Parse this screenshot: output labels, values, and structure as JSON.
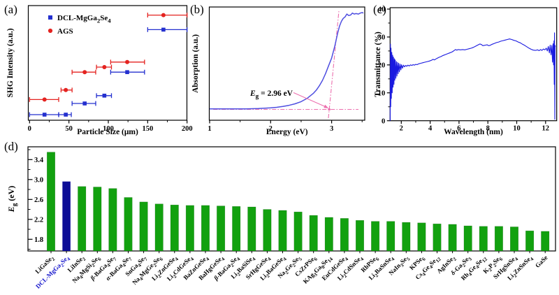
{
  "chart_data": [
    {
      "id": "a",
      "type": "scatter",
      "tag": "(a)",
      "xlabel": "Particle Size (μm)",
      "ylabel": "SHG Intensity (a.u.)",
      "xlim": [
        0,
        200
      ],
      "xticks": [
        0,
        50,
        100,
        150,
        200
      ],
      "xticks_minor": [
        25,
        75,
        125,
        175
      ],
      "y_units": "relative a.u. (unlabeled axis, 0-1)",
      "series": [
        {
          "name": "DCL-MgGa₂Se₄",
          "marker": "square",
          "color": "#2430cf",
          "x": [
            19,
            46,
            70,
            95,
            124,
            170
          ],
          "y": [
            0.05,
            0.05,
            0.15,
            0.22,
            0.43,
            0.81
          ],
          "xerr_low": [
            0,
            37,
            54,
            85,
            103,
            150
          ],
          "xerr_high": [
            37,
            53,
            84,
            104,
            146,
            200
          ]
        },
        {
          "name": "AGS",
          "marker": "circle",
          "color": "#e42320",
          "x": [
            19,
            46,
            70,
            95,
            124,
            170
          ],
          "y": [
            0.185,
            0.27,
            0.43,
            0.475,
            0.52,
            0.94
          ],
          "xerr_low": [
            0,
            40,
            54,
            85,
            103,
            150
          ],
          "xerr_high": [
            37,
            54,
            84,
            104,
            146,
            200
          ]
        }
      ]
    },
    {
      "id": "b",
      "type": "line",
      "tag": "(b)",
      "xlabel": "Energy (eV)",
      "ylabel": "Absorption (a.u.)",
      "xlim": [
        1,
        3.55
      ],
      "xticks": [
        1,
        2,
        3
      ],
      "xticks_minor": [
        1.5,
        2.5,
        3.5
      ],
      "band_gap_eV": 2.96,
      "annotation": {
        "italic": "E",
        "sub": "g",
        "rest": " = 2.96 eV"
      },
      "curve_color": "#4e4ee0",
      "guide_color": "#ec6fae",
      "points": [
        [
          1.0,
          0.005
        ],
        [
          1.1,
          0.005
        ],
        [
          1.2,
          0.005
        ],
        [
          1.3,
          0.005
        ],
        [
          1.4,
          0.005
        ],
        [
          1.5,
          0.005
        ],
        [
          1.6,
          0.006
        ],
        [
          1.7,
          0.007
        ],
        [
          1.8,
          0.009
        ],
        [
          1.9,
          0.012
        ],
        [
          2.0,
          0.016
        ],
        [
          2.1,
          0.022
        ],
        [
          2.2,
          0.03
        ],
        [
          2.3,
          0.042
        ],
        [
          2.4,
          0.058
        ],
        [
          2.5,
          0.08
        ],
        [
          2.6,
          0.115
        ],
        [
          2.7,
          0.165
        ],
        [
          2.75,
          0.2
        ],
        [
          2.8,
          0.245
        ],
        [
          2.85,
          0.3
        ],
        [
          2.9,
          0.37
        ],
        [
          2.95,
          0.45
        ],
        [
          3.0,
          0.53
        ],
        [
          3.05,
          0.65
        ],
        [
          3.1,
          0.79
        ],
        [
          3.13,
          0.86
        ],
        [
          3.16,
          0.91
        ],
        [
          3.19,
          0.94
        ],
        [
          3.22,
          0.955
        ],
        [
          3.25,
          0.985
        ],
        [
          3.28,
          0.97
        ],
        [
          3.31,
          0.975
        ],
        [
          3.34,
          0.995
        ],
        [
          3.37,
          0.985
        ],
        [
          3.4,
          0.99
        ],
        [
          3.44,
          0.985
        ],
        [
          3.47,
          0.995
        ],
        [
          3.5,
          1.0
        ],
        [
          3.52,
          0.995
        ]
      ]
    },
    {
      "id": "c",
      "type": "line",
      "tag": "(c)",
      "xlabel": "Wavelength (nm)",
      "ylabel": "Transmittance (%)",
      "xlim": [
        1.2,
        12.77
      ],
      "ylim": [
        0,
        40
      ],
      "xticks": [
        2,
        4,
        6,
        8,
        10,
        12
      ],
      "xticks_minor": [
        3,
        5,
        7,
        9,
        11
      ],
      "yticks": [
        0,
        10,
        20,
        30,
        40
      ],
      "yticks_minor": [
        5,
        15,
        25,
        35
      ],
      "curve_color": "#1a1ae0",
      "points": [
        [
          1.23,
          0
        ],
        [
          1.25,
          27.5
        ],
        [
          1.27,
          5
        ],
        [
          1.29,
          26
        ],
        [
          1.31,
          8
        ],
        [
          1.34,
          24.5
        ],
        [
          1.37,
          10
        ],
        [
          1.4,
          23.5
        ],
        [
          1.43,
          12
        ],
        [
          1.46,
          22.8
        ],
        [
          1.49,
          13
        ],
        [
          1.52,
          22.2
        ],
        [
          1.55,
          14.5
        ],
        [
          1.58,
          21.8
        ],
        [
          1.62,
          15.2
        ],
        [
          1.66,
          21.2
        ],
        [
          1.7,
          16
        ],
        [
          1.74,
          20.9
        ],
        [
          1.78,
          16.8
        ],
        [
          1.82,
          20.6
        ],
        [
          1.87,
          17.5
        ],
        [
          1.92,
          20.3
        ],
        [
          1.97,
          18.2
        ],
        [
          2.02,
          20.1
        ],
        [
          2.08,
          18.8
        ],
        [
          2.15,
          19.9
        ],
        [
          2.22,
          19.3
        ],
        [
          2.3,
          19.8
        ],
        [
          2.38,
          19.5
        ],
        [
          2.46,
          19.9
        ],
        [
          2.55,
          19.6
        ],
        [
          2.64,
          20
        ],
        [
          2.73,
          19.8
        ],
        [
          2.82,
          20.1
        ],
        [
          2.91,
          19.9
        ],
        [
          3.0,
          20.2
        ],
        [
          3.1,
          20.1
        ],
        [
          3.2,
          20.4
        ],
        [
          3.35,
          20.6
        ],
        [
          3.5,
          20.8
        ],
        [
          3.65,
          21
        ],
        [
          3.8,
          21.2
        ],
        [
          3.95,
          21.4
        ],
        [
          4.1,
          21.7
        ],
        [
          4.2,
          22
        ],
        [
          4.3,
          21.8
        ],
        [
          4.45,
          22.3
        ],
        [
          4.6,
          22.7
        ],
        [
          4.75,
          23
        ],
        [
          4.9,
          23.4
        ],
        [
          5.05,
          23.7
        ],
        [
          5.2,
          24
        ],
        [
          5.35,
          24.3
        ],
        [
          5.5,
          24.6
        ],
        [
          5.65,
          25.1
        ],
        [
          5.75,
          25.5
        ],
        [
          5.85,
          25.3
        ],
        [
          5.95,
          25.5
        ],
        [
          6.1,
          25.4
        ],
        [
          6.25,
          25.5
        ],
        [
          6.4,
          25.4
        ],
        [
          6.55,
          25.6
        ],
        [
          6.7,
          25.8
        ],
        [
          6.85,
          26
        ],
        [
          7.0,
          26.3
        ],
        [
          7.15,
          26.7
        ],
        [
          7.3,
          27.1
        ],
        [
          7.45,
          27.5
        ],
        [
          7.55,
          27.3
        ],
        [
          7.65,
          26.9
        ],
        [
          7.75,
          27
        ],
        [
          7.85,
          27.1
        ],
        [
          7.95,
          27.2
        ],
        [
          8.05,
          26.9
        ],
        [
          8.15,
          27
        ],
        [
          8.3,
          27.4
        ],
        [
          8.45,
          27.7
        ],
        [
          8.6,
          28
        ],
        [
          8.75,
          28.2
        ],
        [
          8.9,
          28.5
        ],
        [
          9.05,
          28.7
        ],
        [
          9.2,
          28.9
        ],
        [
          9.35,
          29.1
        ],
        [
          9.5,
          29.3
        ],
        [
          9.65,
          29.1
        ],
        [
          9.8,
          28.8
        ],
        [
          9.95,
          28.6
        ],
        [
          10.1,
          28.2
        ],
        [
          10.25,
          27.9
        ],
        [
          10.4,
          27.4
        ],
        [
          10.55,
          27
        ],
        [
          10.7,
          26.5
        ],
        [
          10.85,
          26
        ],
        [
          11.0,
          25.6
        ],
        [
          11.15,
          25.3
        ],
        [
          11.3,
          25.2
        ],
        [
          11.45,
          25.4
        ],
        [
          11.55,
          25.1
        ],
        [
          11.65,
          25.5
        ],
        [
          11.75,
          25.2
        ],
        [
          11.85,
          25.7
        ],
        [
          11.95,
          25.4
        ],
        [
          12.05,
          26
        ],
        [
          12.12,
          25
        ],
        [
          12.19,
          26.6
        ],
        [
          12.26,
          24.3
        ],
        [
          12.32,
          27.1
        ],
        [
          12.38,
          23.6
        ],
        [
          12.43,
          27
        ],
        [
          12.48,
          21
        ],
        [
          12.52,
          27.6
        ],
        [
          12.55,
          20
        ],
        [
          12.58,
          28.6
        ],
        [
          12.6,
          13
        ],
        [
          12.62,
          31.5
        ],
        [
          12.64,
          0.5
        ],
        [
          12.66,
          27
        ],
        [
          12.68,
          26.5
        ]
      ]
    },
    {
      "id": "d",
      "type": "bar",
      "tag": "(d)",
      "ylabel": {
        "italic": "E",
        "sub": "g",
        "rest": " (eV)"
      },
      "ylim": [
        1.56,
        3.66
      ],
      "yticks": [
        1.8,
        2.2,
        2.6,
        3.0,
        3.4
      ],
      "yticks_minor": [
        1.6,
        2.0,
        2.4,
        2.8,
        3.2,
        3.6
      ],
      "bar_color": "#12a10f",
      "highlight_color": "#0d0d96",
      "highlight_index": 1,
      "highlight_label_color": "#1414cc",
      "categories": [
        "LiGaSe₂",
        "DCL-MgGa₂Se₄",
        "LiInSe₂",
        "Na₄MgSi₂Se₆",
        "β-BaGa₄Se₇",
        "α-BaGa₄Se₇",
        "SnGa₄Se₇",
        "Na₄MgGe₂Se₆",
        "Li₂ZnGeSe₄",
        "Li₂CdGeSe₄",
        "BaZnGeSe₄",
        "BaHgGeSe₄",
        "β-BaGa₂Se₄",
        "Li₂BaSiSe₄",
        "SrHgGeSe₄",
        "Li₂BaGeSe₄",
        "Na₂Ge₂Se₅",
        "CsZrPSe₆",
        "KAg₃Ga₈Se₁₄",
        "EuCdGeSe₄",
        "Li₂CdSnSe₄",
        "RbPSe₆",
        "Li₂BaSnSe₄",
        "NaIn₃Se₅",
        "KPSe₆",
        "Cs₄Ge₄Se₁₂",
        "AgInSe₂",
        "δ-Ga₂Se₃",
        "Rb₄Ge₄Se₁₂",
        "K₂P₂Se₆",
        "SrHgSnSe₄",
        "Li₂ZnSnSe₄",
        "GaSe"
      ],
      "values": [
        3.55,
        2.96,
        2.86,
        2.85,
        2.82,
        2.64,
        2.55,
        2.51,
        2.49,
        2.48,
        2.48,
        2.47,
        2.46,
        2.45,
        2.4,
        2.38,
        2.35,
        2.28,
        2.24,
        2.22,
        2.18,
        2.16,
        2.16,
        2.14,
        2.13,
        2.11,
        2.1,
        2.07,
        2.06,
        2.06,
        2.05,
        1.97,
        1.96
      ]
    }
  ]
}
